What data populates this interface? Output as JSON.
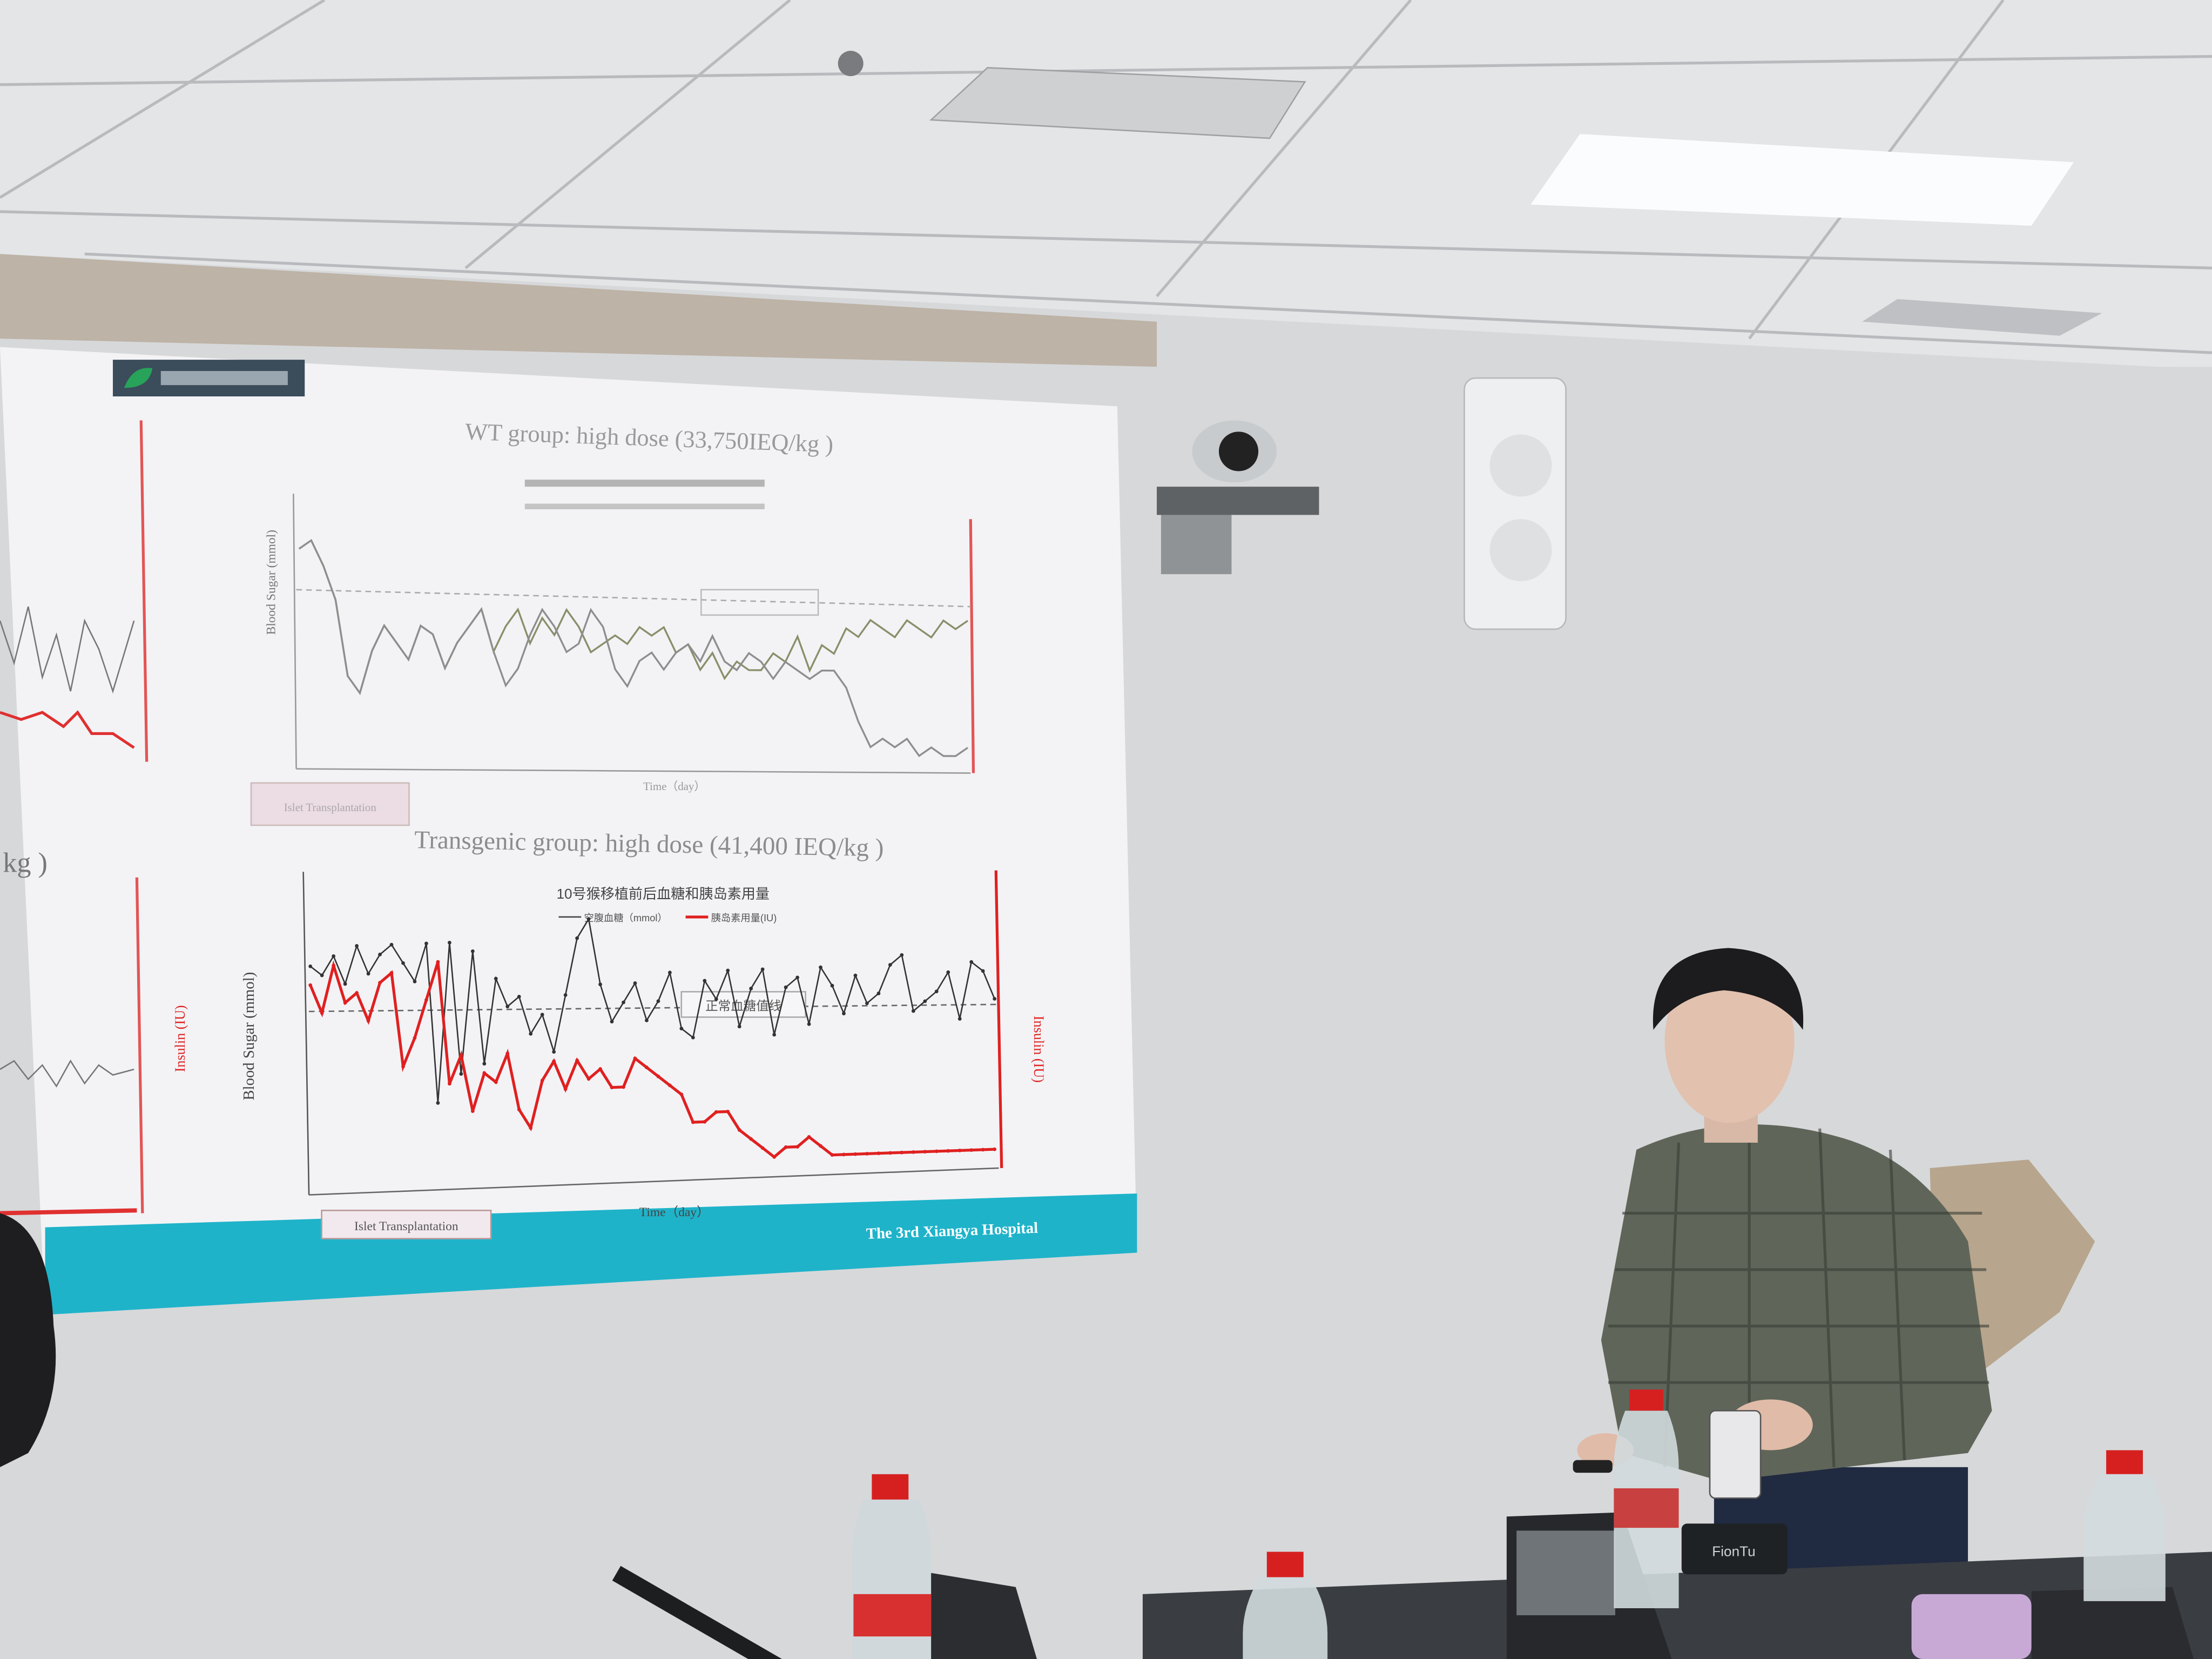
{
  "slide": {
    "left_fragment": "kg )",
    "wt_title": "WT group: high dose (33,750IEQ/kg )",
    "transgenic_title": "Transgenic group: high dose (41,400 IEQ/kg )",
    "chart_title_cn": "10号猴移植前后血糖和胰岛素用量",
    "legend_blood_sugar": "空腹血糖（mmol）",
    "legend_insulin": "胰岛素用量(IU)",
    "normal_line_label": "正常血糖值线",
    "y_label": "Blood Sugar (mmol)",
    "y2_label": "Insulin (IU)",
    "x_label": "Time（day）",
    "islet_marker": "Islet Transplantation",
    "footer": "The 3rd Xiangya Hospital",
    "colors": {
      "footer_band": "#1fb3c9",
      "insulin": "#e02020",
      "blood_sugar": "#333333",
      "wt_sugar": "#8a8f6a"
    }
  },
  "device_label": "FionTu",
  "chart_data": [
    {
      "type": "line",
      "title": "WT group: high dose (33,750IEQ/kg )",
      "xlabel": "Time（day）",
      "series": [
        {
          "values": [
            26,
            27,
            24,
            20,
            11,
            9,
            14,
            17,
            15,
            13,
            17,
            16,
            12,
            15,
            17,
            19,
            14,
            10,
            12,
            16,
            19,
            17,
            14,
            15,
            19,
            17,
            12,
            10,
            13,
            14,
            12,
            14,
            15,
            13,
            16,
            13,
            12,
            14,
            13,
            11,
            13,
            12,
            11,
            12,
            12,
            10,
            6,
            3,
            4,
            3,
            4,
            2,
            3,
            2,
            2,
            3
          ]
        },
        {
          "values": [
            26,
            27,
            24,
            20,
            11,
            9,
            14,
            17,
            15,
            13,
            17,
            16,
            12,
            15,
            17,
            19,
            14,
            17,
            19,
            15,
            18,
            16,
            19,
            17,
            14,
            15,
            16,
            15,
            17,
            16,
            17,
            14,
            15,
            12,
            14,
            11,
            13,
            12,
            12,
            14,
            13,
            16,
            12,
            15,
            14,
            17,
            16,
            18,
            17,
            16,
            18,
            17,
            16,
            18,
            17,
            18
          ]
        }
      ]
    },
    {
      "type": "line",
      "title": "Transgenic group: high dose (41,400 IEQ/kg )",
      "xlabel": "Time（day）",
      "ylabel": "Blood Sugar (mmol)",
      "y2label": "Insulin (IU)",
      "series": [
        {
          "name": "空腹血糖（mmol）",
          "values": [
            24,
            23,
            25,
            22,
            26,
            23,
            25,
            26,
            24,
            22,
            26,
            9,
            26,
            12,
            25,
            13,
            22,
            19,
            20,
            16,
            18,
            14,
            20,
            26,
            28,
            21,
            17,
            19,
            21,
            17,
            19,
            22,
            16,
            15,
            21,
            19,
            22,
            16,
            20,
            22,
            15,
            20,
            21,
            16,
            22,
            20,
            17,
            21,
            18,
            19,
            22,
            23,
            17,
            18,
            19,
            21,
            16,
            22,
            21,
            18
          ]
        },
        {
          "name": "胰岛素用量(IU)",
          "values": [
            22,
            19,
            24,
            20,
            21,
            18,
            22,
            23,
            13,
            16,
            20,
            24,
            11,
            14,
            8,
            12,
            11,
            14,
            8,
            6,
            11,
            13,
            10,
            13,
            11,
            12,
            10,
            10,
            13,
            12,
            11,
            10,
            9,
            6,
            6,
            7,
            7,
            5,
            4,
            3,
            2,
            3,
            3,
            4,
            3,
            2,
            2,
            2,
            2,
            2,
            2,
            2,
            2,
            2,
            2,
            2,
            2,
            2,
            2,
            2
          ]
        }
      ],
      "reference_line": {
        "label": "正常血糖值线",
        "value": 20
      }
    }
  ]
}
